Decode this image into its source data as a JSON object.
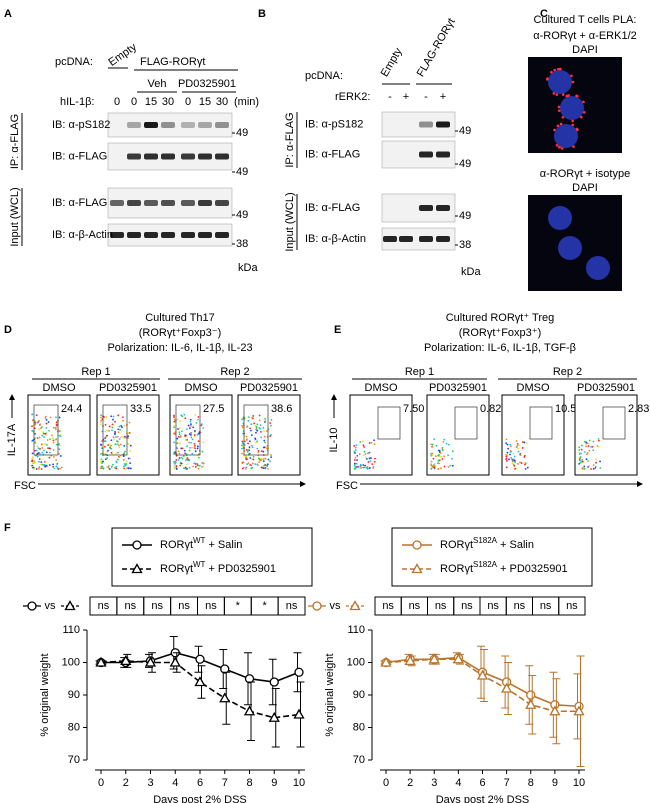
{
  "panel_a": {
    "letter": "A",
    "pcdna": "pcDNA:",
    "empty": "Empty",
    "flag": "FLAG-RORγt",
    "veh": "Veh",
    "pd": "PD0325901",
    "hil": "hIL-1β:",
    "times": [
      "0",
      "0",
      "15",
      "30",
      "0",
      "15",
      "30"
    ],
    "min": "(min)",
    "ip": "IP: α-FLAG",
    "input": "Input (WCL)",
    "blots": [
      "IB: α-pS182",
      "IB: α-FLAG",
      "IB: α-FLAG",
      "IB: α-β-Actin"
    ],
    "mw": [
      "49",
      "49",
      "49",
      "38"
    ],
    "kda": "kDa"
  },
  "panel_b": {
    "letter": "B",
    "pcdna": "pcDNA:",
    "empty": "Empty",
    "flag": "FLAG-RORγt",
    "rerk": "rERK2:",
    "signs": [
      "-",
      "+",
      "-",
      "+"
    ],
    "ip": "IP: α-FLAG",
    "input": "Input (WCL)",
    "blots": [
      "IB: α-pS182",
      "IB: α-FLAG",
      "IB: α-FLAG",
      "IB: α-β-Actin"
    ],
    "mw": [
      "49",
      "49",
      "49",
      "38"
    ],
    "kda": "kDa"
  },
  "panel_c": {
    "letter": "C",
    "title": "Cultured T cells PLA:",
    "image1": [
      "α-RORγt + α-ERK1/2",
      "DAPI"
    ],
    "image2": [
      "α-RORγt + isotype",
      "DAPI"
    ]
  },
  "panel_d": {
    "letter": "D",
    "title": [
      "Cultured Th17",
      "(RORγt⁺Foxp3⁻)",
      "Polarization: IL-6, IL-1β, IL-23"
    ],
    "reps": [
      "Rep 1",
      "Rep 2"
    ],
    "conditions": [
      "DMSO",
      "PD0325901",
      "DMSO",
      "PD0325901"
    ],
    "gates": [
      "24.4",
      "33.5",
      "27.5",
      "38.6"
    ],
    "ylabel": "IL-17A",
    "xlabel": "FSC"
  },
  "panel_e": {
    "letter": "E",
    "title": [
      "Cultured RORγt⁺ Treg",
      "(RORγt⁺Foxp3⁺)",
      "Polarization: IL-6, IL-1β, TGF-β"
    ],
    "reps": [
      "Rep 1",
      "Rep 2"
    ],
    "conditions": [
      "DMSO",
      "PD0325901",
      "DMSO",
      "PD0325901"
    ],
    "gates": [
      "7.50",
      "0.82",
      "10.5",
      "2.83"
    ],
    "ylabel": "IL-10",
    "xlabel": "FSC"
  },
  "panel_f": {
    "letter": "F"
  },
  "chart_data": [
    {
      "type": "line",
      "ylabel": "% original weight",
      "xlabel": "Days post 2% DSS",
      "categories": [
        "0",
        "2",
        "3",
        "4",
        "6",
        "7",
        "8",
        "9",
        "10"
      ],
      "ylim": [
        70,
        110
      ],
      "yticks": [
        70,
        80,
        90,
        100,
        110
      ],
      "series": [
        {
          "name": "RORγt",
          "name_sup": "WT",
          "name_rest": "+ Salin",
          "color": "#000000",
          "marker": "circle",
          "dashed": false,
          "values": [
            100,
            100,
            100.5,
            103,
            101,
            98,
            95,
            94,
            97
          ],
          "errors": [
            0.5,
            1.5,
            2,
            5,
            4,
            6,
            8,
            7,
            6
          ]
        },
        {
          "name": "RORγt",
          "name_sup": "WT",
          "name_rest": "+ PD0325901",
          "color": "#000000",
          "marker": "triangle",
          "dashed": true,
          "values": [
            100,
            100.5,
            100,
            100,
            94,
            89,
            85,
            83,
            84
          ],
          "errors": [
            0.5,
            2,
            3,
            3,
            5,
            8,
            9,
            9,
            10
          ]
        }
      ],
      "comparison": {
        "vs": "vs",
        "labels": [
          "ns",
          "ns",
          "ns",
          "ns",
          "ns",
          "*",
          "*",
          "ns"
        ]
      }
    },
    {
      "type": "line",
      "ylabel": "% original weight",
      "xlabel": "Days post 2% DSS",
      "categories": [
        "0",
        "2",
        "3",
        "4",
        "6",
        "7",
        "8",
        "9",
        "10"
      ],
      "ylim": [
        70,
        110
      ],
      "yticks": [
        70,
        80,
        90,
        100,
        110
      ],
      "series": [
        {
          "name": "RORγt",
          "name_sup": "S182A",
          "name_rest": "+ Salin",
          "color": "#b8742a",
          "marker": "circle",
          "dashed": false,
          "values": [
            100,
            101,
            101,
            101.5,
            97,
            94,
            90,
            87,
            86.5
          ],
          "errors": [
            0.5,
            1.5,
            1.5,
            1.5,
            8,
            8,
            9,
            10,
            10
          ]
        },
        {
          "name": "RORγt",
          "name_sup": "S182A",
          "name_rest": "+ PD0325901",
          "color": "#b8742a",
          "marker": "triangle",
          "dashed": true,
          "values": [
            100,
            100.5,
            101,
            101,
            96,
            92,
            87,
            85,
            85
          ],
          "errors": [
            0.5,
            1.5,
            1.5,
            1.5,
            8,
            8,
            9,
            10,
            17
          ]
        }
      ],
      "comparison": {
        "vs": "vs",
        "labels": [
          "ns",
          "ns",
          "ns",
          "ns",
          "ns",
          "ns",
          "ns",
          "ns"
        ]
      }
    }
  ]
}
